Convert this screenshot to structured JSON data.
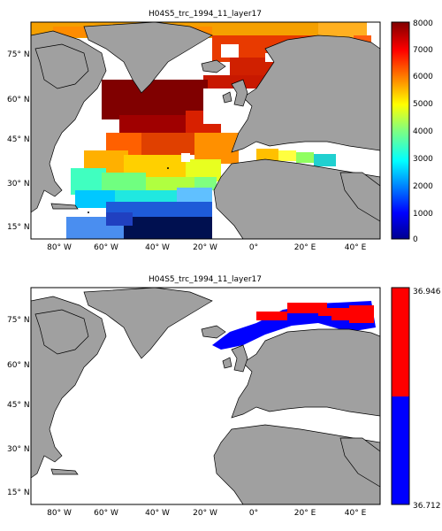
{
  "figure": {
    "panels": [
      {
        "title": "H04S5_trc_1994_11_layer17",
        "colorbar": {
          "type": "continuous",
          "min": 0,
          "max": 8000,
          "ticks": [
            "0",
            "1000",
            "2000",
            "3000",
            "4000",
            "5000",
            "6000",
            "7000",
            "8000"
          ],
          "colormap": "jet"
        }
      },
      {
        "title": "H04S5_trc_1994_11_layer17",
        "colorbar": {
          "type": "two-level",
          "top_label": "36.946",
          "bottom_label": "36.712",
          "colors": [
            "#ff0000",
            "#0000ff"
          ]
        }
      }
    ],
    "lat_ticks": [
      "75° N",
      "60° N",
      "45° N",
      "30° N",
      "15° N"
    ],
    "lon_ticks": [
      "80° W",
      "60° W",
      "40° W",
      "20° W",
      "0°",
      "20° E",
      "40° E"
    ],
    "colors": {
      "land": "#a0a0a0",
      "ocean_nodata": "#ffffff",
      "coast": "#000000"
    }
  }
}
